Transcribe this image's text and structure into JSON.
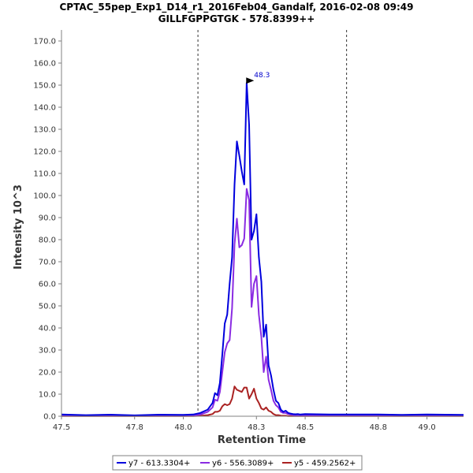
{
  "chart_data": {
    "type": "line",
    "title": "CPTAC_55pep_Exp1_D14_r1_2016Feb04_Gandalf, 2016-02-08 09:49",
    "subtitle": "GILLFGPPGTGK - 578.8399++",
    "xlabel": "Retention Time",
    "ylabel": "Intensity 10^3",
    "xlim": [
      47.5,
      49.15
    ],
    "ylim": [
      0,
      175
    ],
    "x_ticks": [
      47.5,
      47.8,
      48.0,
      48.3,
      48.5,
      48.8,
      49.0
    ],
    "x_tick_labels": [
      "47.5",
      "47.8",
      "48.0",
      "48.3",
      "48.5",
      "48.8",
      "49.0"
    ],
    "y_ticks": [
      0,
      10,
      20,
      30,
      40,
      50,
      60,
      70,
      80,
      90,
      100,
      110,
      120,
      130,
      140,
      150,
      160,
      170
    ],
    "y_tick_labels": [
      "0.0",
      "10.0",
      "20.0",
      "30.0",
      "40.0",
      "50.0",
      "60.0",
      "70.0",
      "80.0",
      "90.0",
      "100.0",
      "110.0",
      "120.0",
      "130.0",
      "140.0",
      "150.0",
      "160.0",
      "170.0"
    ],
    "grid": false,
    "legend_position": "bottom",
    "boundaries": [
      48.06,
      48.67
    ],
    "peak": {
      "x": 48.3,
      "y": 151,
      "label": "48.3",
      "color": "#0000cc"
    },
    "series": [
      {
        "name": "y7 - 613.3304+",
        "color": "#0000dd",
        "x": [
          47.5,
          47.6,
          47.7,
          47.8,
          47.9,
          48.0,
          48.04,
          48.07,
          48.1,
          48.12,
          48.13,
          48.14,
          48.15,
          48.16,
          48.17,
          48.18,
          48.19,
          48.2,
          48.21,
          48.22,
          48.23,
          48.24,
          48.25,
          48.26,
          48.27,
          48.28,
          48.29,
          48.3,
          48.31,
          48.32,
          48.33,
          48.34,
          48.35,
          48.36,
          48.37,
          48.38,
          48.39,
          48.4,
          48.41,
          48.42,
          48.43,
          48.44,
          48.45,
          48.46,
          48.47,
          48.48,
          48.5,
          48.55,
          48.6,
          48.7,
          48.8,
          48.9,
          49.0,
          49.15
        ],
        "values": [
          0.8,
          0.5,
          0.7,
          0.4,
          0.7,
          0.6,
          0.8,
          1.5,
          3.0,
          6.0,
          10.5,
          9.5,
          15.0,
          28.0,
          42.0,
          46.0,
          60.0,
          72.0,
          105.0,
          124.5,
          118.0,
          111.0,
          105.0,
          151.0,
          132.0,
          80.0,
          84.0,
          91.5,
          72.0,
          61.0,
          36.0,
          41.5,
          23.0,
          18.5,
          12.0,
          7.0,
          6.0,
          3.0,
          2.0,
          2.5,
          1.5,
          1.2,
          1.0,
          0.9,
          1.0,
          0.8,
          1.0,
          0.9,
          0.8,
          0.8,
          0.8,
          0.6,
          0.8,
          0.6
        ]
      },
      {
        "name": "y6 - 556.3089+",
        "color": "#8a2be2",
        "x": [
          47.5,
          47.6,
          47.7,
          47.8,
          47.9,
          48.0,
          48.04,
          48.07,
          48.1,
          48.12,
          48.13,
          48.14,
          48.15,
          48.16,
          48.17,
          48.18,
          48.19,
          48.2,
          48.21,
          48.22,
          48.23,
          48.24,
          48.25,
          48.26,
          48.27,
          48.28,
          48.29,
          48.3,
          48.31,
          48.32,
          48.33,
          48.34,
          48.35,
          48.36,
          48.37,
          48.38,
          48.39,
          48.4,
          48.41,
          48.42,
          48.43,
          48.44,
          48.45,
          48.46,
          48.47,
          48.48,
          48.5,
          48.55,
          48.6,
          48.7,
          48.8,
          48.9,
          49.0,
          49.15
        ],
        "values": [
          0.3,
          0.2,
          0.3,
          0.2,
          0.3,
          0.3,
          0.4,
          0.8,
          2.0,
          4.0,
          7.5,
          7.0,
          11.0,
          20.0,
          29.0,
          33.0,
          34.5,
          49.0,
          78.0,
          89.5,
          76.5,
          77.5,
          80.5,
          103.0,
          98.0,
          49.5,
          60.0,
          63.5,
          46.0,
          36.0,
          20.0,
          27.0,
          16.5,
          12.0,
          7.0,
          5.0,
          4.0,
          2.0,
          1.5,
          1.5,
          1.0,
          0.8,
          0.6,
          0.5,
          0.5,
          0.4,
          0.5,
          0.4,
          0.4,
          0.3,
          0.4,
          0.3,
          0.3,
          0.3
        ]
      },
      {
        "name": "y5 - 459.2562+",
        "color": "#aa2222",
        "x": [
          47.5,
          47.6,
          47.7,
          47.8,
          47.9,
          48.0,
          48.04,
          48.07,
          48.1,
          48.12,
          48.13,
          48.14,
          48.15,
          48.16,
          48.17,
          48.18,
          48.19,
          48.2,
          48.21,
          48.22,
          48.23,
          48.24,
          48.25,
          48.26,
          48.27,
          48.28,
          48.29,
          48.3,
          48.31,
          48.32,
          48.33,
          48.34,
          48.35,
          48.36,
          48.37,
          48.38,
          48.39,
          48.4,
          48.41,
          48.42,
          48.43,
          48.44,
          48.45,
          48.46,
          48.47,
          48.48,
          48.5,
          48.55,
          48.6,
          48.7,
          48.8,
          48.9,
          49.0,
          49.15
        ],
        "values": [
          0.1,
          0.1,
          0.1,
          0.1,
          0.1,
          0.1,
          0.1,
          0.2,
          0.5,
          1.0,
          2.0,
          2.0,
          2.5,
          4.5,
          5.5,
          5.0,
          5.5,
          8.0,
          13.5,
          12.0,
          11.5,
          11.0,
          13.0,
          13.0,
          8.0,
          10.0,
          12.5,
          8.0,
          6.0,
          3.5,
          3.0,
          4.0,
          2.5,
          2.0,
          1.0,
          0.5,
          0.5,
          0.3,
          0.2,
          0.2,
          0.1,
          0.1,
          0.1,
          0.1,
          0.1,
          0.1,
          0.1,
          0.1,
          0.1,
          0.1,
          0.1,
          0.1,
          0.1,
          0.1
        ]
      }
    ]
  }
}
